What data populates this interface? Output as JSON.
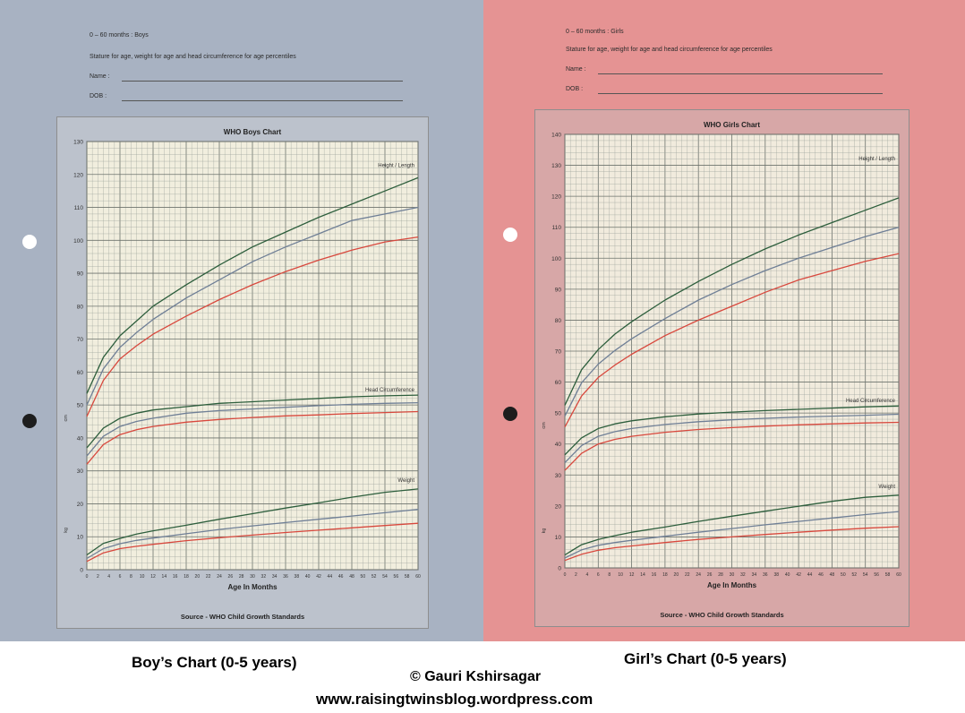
{
  "charts": [
    {
      "key": "boys",
      "header": {
        "range": "0 – 60 months : Boys",
        "subtitle": "Stature for age, weight for age and head circumference for age percentiles",
        "name_label": "Name :",
        "dob_label": "DOB :"
      },
      "footer": "Source - WHO Child Growth Standards",
      "caption": "Boy’s Chart (0-5 years)",
      "colors": {
        "sheet": "#a8b2c2",
        "panel": "#f1eede",
        "frame": "#bcc2cc",
        "grid": "#9aa09a"
      }
    },
    {
      "key": "girls",
      "header": {
        "range": "0 – 60 months : Girls",
        "subtitle": "Stature for age, weight for age and head circumference for age percentiles",
        "name_label": "Name :",
        "dob_label": "DOB :"
      },
      "footer": "Source - WHO Child Growth Standards",
      "caption": "Girl’s Chart (0-5 years)",
      "colors": {
        "sheet": "#e59393",
        "panel": "#f1ebdd",
        "frame": "#d7a7a7",
        "grid": "#9aa09a"
      }
    }
  ],
  "chart_data": [
    {
      "type": "line",
      "title": "WHO Boys Chart",
      "xlabel": "Age In Months",
      "xlim": [
        0,
        60
      ],
      "ylim": [
        0,
        130
      ],
      "x_ticks": [
        0,
        2,
        4,
        6,
        8,
        10,
        12,
        14,
        16,
        18,
        20,
        22,
        24,
        26,
        28,
        30,
        32,
        34,
        36,
        38,
        40,
        42,
        44,
        46,
        48,
        50,
        52,
        54,
        56,
        58,
        60
      ],
      "y_ticks": [
        0,
        10,
        20,
        30,
        40,
        50,
        60,
        70,
        80,
        90,
        100,
        110,
        120,
        130
      ],
      "axis_unit_left": "cm",
      "axis_unit_weight": "kg",
      "grid": true,
      "annotations": [
        "Height / Length",
        "Head Circumference",
        "Weight"
      ],
      "x": [
        0,
        3,
        6,
        9,
        12,
        18,
        24,
        30,
        36,
        42,
        48,
        54,
        60
      ],
      "series": [
        {
          "group": "height",
          "color": "#2d5e3c",
          "values": [
            53.5,
            64.5,
            71.0,
            75.5,
            80.0,
            86.5,
            92.5,
            98.0,
            102.5,
            107.0,
            111.0,
            115.0,
            119.0
          ]
        },
        {
          "group": "height",
          "color": "#6f7f96",
          "values": [
            50.0,
            61.0,
            67.5,
            72.0,
            76.0,
            82.5,
            88.0,
            93.5,
            98.0,
            102.0,
            106.0,
            108.0,
            110.0
          ]
        },
        {
          "group": "height",
          "color": "#d8483d",
          "values": [
            46.5,
            57.5,
            64.0,
            68.0,
            71.5,
            77.0,
            82.0,
            86.5,
            90.5,
            94.0,
            97.0,
            99.5,
            101.0
          ]
        },
        {
          "group": "head",
          "color": "#2d5e3c",
          "values": [
            37.0,
            43.0,
            46.0,
            47.5,
            48.5,
            49.5,
            50.5,
            51.0,
            51.5,
            52.0,
            52.5,
            52.8,
            53.0
          ]
        },
        {
          "group": "head",
          "color": "#6f7f96",
          "values": [
            34.5,
            40.5,
            43.5,
            45.0,
            46.0,
            47.5,
            48.3,
            48.8,
            49.3,
            49.8,
            50.2,
            50.5,
            50.7
          ]
        },
        {
          "group": "head",
          "color": "#d8483d",
          "values": [
            32.0,
            38.0,
            41.0,
            42.5,
            43.5,
            44.8,
            45.6,
            46.2,
            46.7,
            47.0,
            47.4,
            47.7,
            48.0
          ]
        },
        {
          "group": "weight",
          "color": "#2d5e3c",
          "values": [
            4.5,
            8.0,
            9.5,
            10.8,
            11.8,
            13.5,
            15.3,
            17.0,
            18.7,
            20.3,
            22.0,
            23.5,
            24.5
          ]
        },
        {
          "group": "weight",
          "color": "#6f7f96",
          "values": [
            3.4,
            6.4,
            7.9,
            8.9,
            9.6,
            10.9,
            12.2,
            13.3,
            14.3,
            15.3,
            16.3,
            17.3,
            18.3
          ]
        },
        {
          "group": "weight",
          "color": "#d8483d",
          "values": [
            2.5,
            5.1,
            6.4,
            7.1,
            7.7,
            8.8,
            9.7,
            10.5,
            11.3,
            12.0,
            12.7,
            13.4,
            14.1
          ]
        }
      ]
    },
    {
      "type": "line",
      "title": "WHO Girls Chart",
      "xlabel": "Age In Months",
      "xlim": [
        0,
        60
      ],
      "ylim": [
        0,
        140
      ],
      "x_ticks": [
        0,
        2,
        4,
        6,
        8,
        10,
        12,
        14,
        16,
        18,
        20,
        22,
        24,
        26,
        28,
        30,
        32,
        34,
        36,
        38,
        40,
        42,
        44,
        46,
        48,
        50,
        52,
        54,
        56,
        58,
        60
      ],
      "y_ticks": [
        0,
        10,
        20,
        30,
        40,
        50,
        60,
        70,
        80,
        90,
        100,
        110,
        120,
        130,
        140
      ],
      "axis_unit_left": "cm",
      "axis_unit_weight": "kg",
      "grid": true,
      "annotations": [
        "Height / Length",
        "Head Circumference",
        "Weight"
      ],
      "x": [
        0,
        3,
        6,
        9,
        12,
        18,
        24,
        30,
        36,
        42,
        48,
        54,
        60
      ],
      "series": [
        {
          "group": "height",
          "color": "#2d5e3c",
          "values": [
            52.5,
            64.0,
            70.5,
            75.5,
            79.5,
            86.5,
            92.5,
            98.0,
            103.0,
            107.5,
            111.5,
            115.5,
            119.5
          ]
        },
        {
          "group": "height",
          "color": "#6f7f96",
          "values": [
            49.0,
            59.8,
            65.8,
            70.2,
            74.0,
            80.5,
            86.5,
            91.5,
            96.0,
            100.0,
            103.5,
            107.0,
            110.0
          ]
        },
        {
          "group": "height",
          "color": "#d8483d",
          "values": [
            45.5,
            55.5,
            61.5,
            65.5,
            69.0,
            75.0,
            80.0,
            84.5,
            89.0,
            93.0,
            96.0,
            99.0,
            101.5
          ]
        },
        {
          "group": "head",
          "color": "#2d5e3c",
          "values": [
            36.5,
            42.0,
            45.0,
            46.5,
            47.5,
            48.8,
            49.7,
            50.3,
            50.8,
            51.2,
            51.6,
            52.0,
            52.3
          ]
        },
        {
          "group": "head",
          "color": "#6f7f96",
          "values": [
            34.0,
            39.5,
            42.5,
            44.0,
            45.0,
            46.3,
            47.2,
            47.8,
            48.3,
            48.7,
            49.0,
            49.3,
            49.6
          ]
        },
        {
          "group": "head",
          "color": "#d8483d",
          "values": [
            31.5,
            37.0,
            40.0,
            41.5,
            42.5,
            43.8,
            44.7,
            45.3,
            45.8,
            46.2,
            46.5,
            46.8,
            47.0
          ]
        },
        {
          "group": "weight",
          "color": "#2d5e3c",
          "values": [
            4.2,
            7.5,
            9.2,
            10.4,
            11.5,
            13.2,
            15.0,
            16.7,
            18.3,
            19.9,
            21.5,
            22.8,
            23.5
          ]
        },
        {
          "group": "weight",
          "color": "#6f7f96",
          "values": [
            3.2,
            5.8,
            7.3,
            8.2,
            8.9,
            10.2,
            11.5,
            12.7,
            13.9,
            15.0,
            16.1,
            17.2,
            18.2
          ]
        },
        {
          "group": "weight",
          "color": "#d8483d",
          "values": [
            2.4,
            4.4,
            5.7,
            6.5,
            7.1,
            8.2,
            9.2,
            10.0,
            10.8,
            11.5,
            12.2,
            12.8,
            13.3
          ]
        }
      ]
    }
  ],
  "bottom": {
    "copyright": "© Gauri Kshirsagar",
    "url": "www.raisingtwinsblog.wordpress.com"
  }
}
